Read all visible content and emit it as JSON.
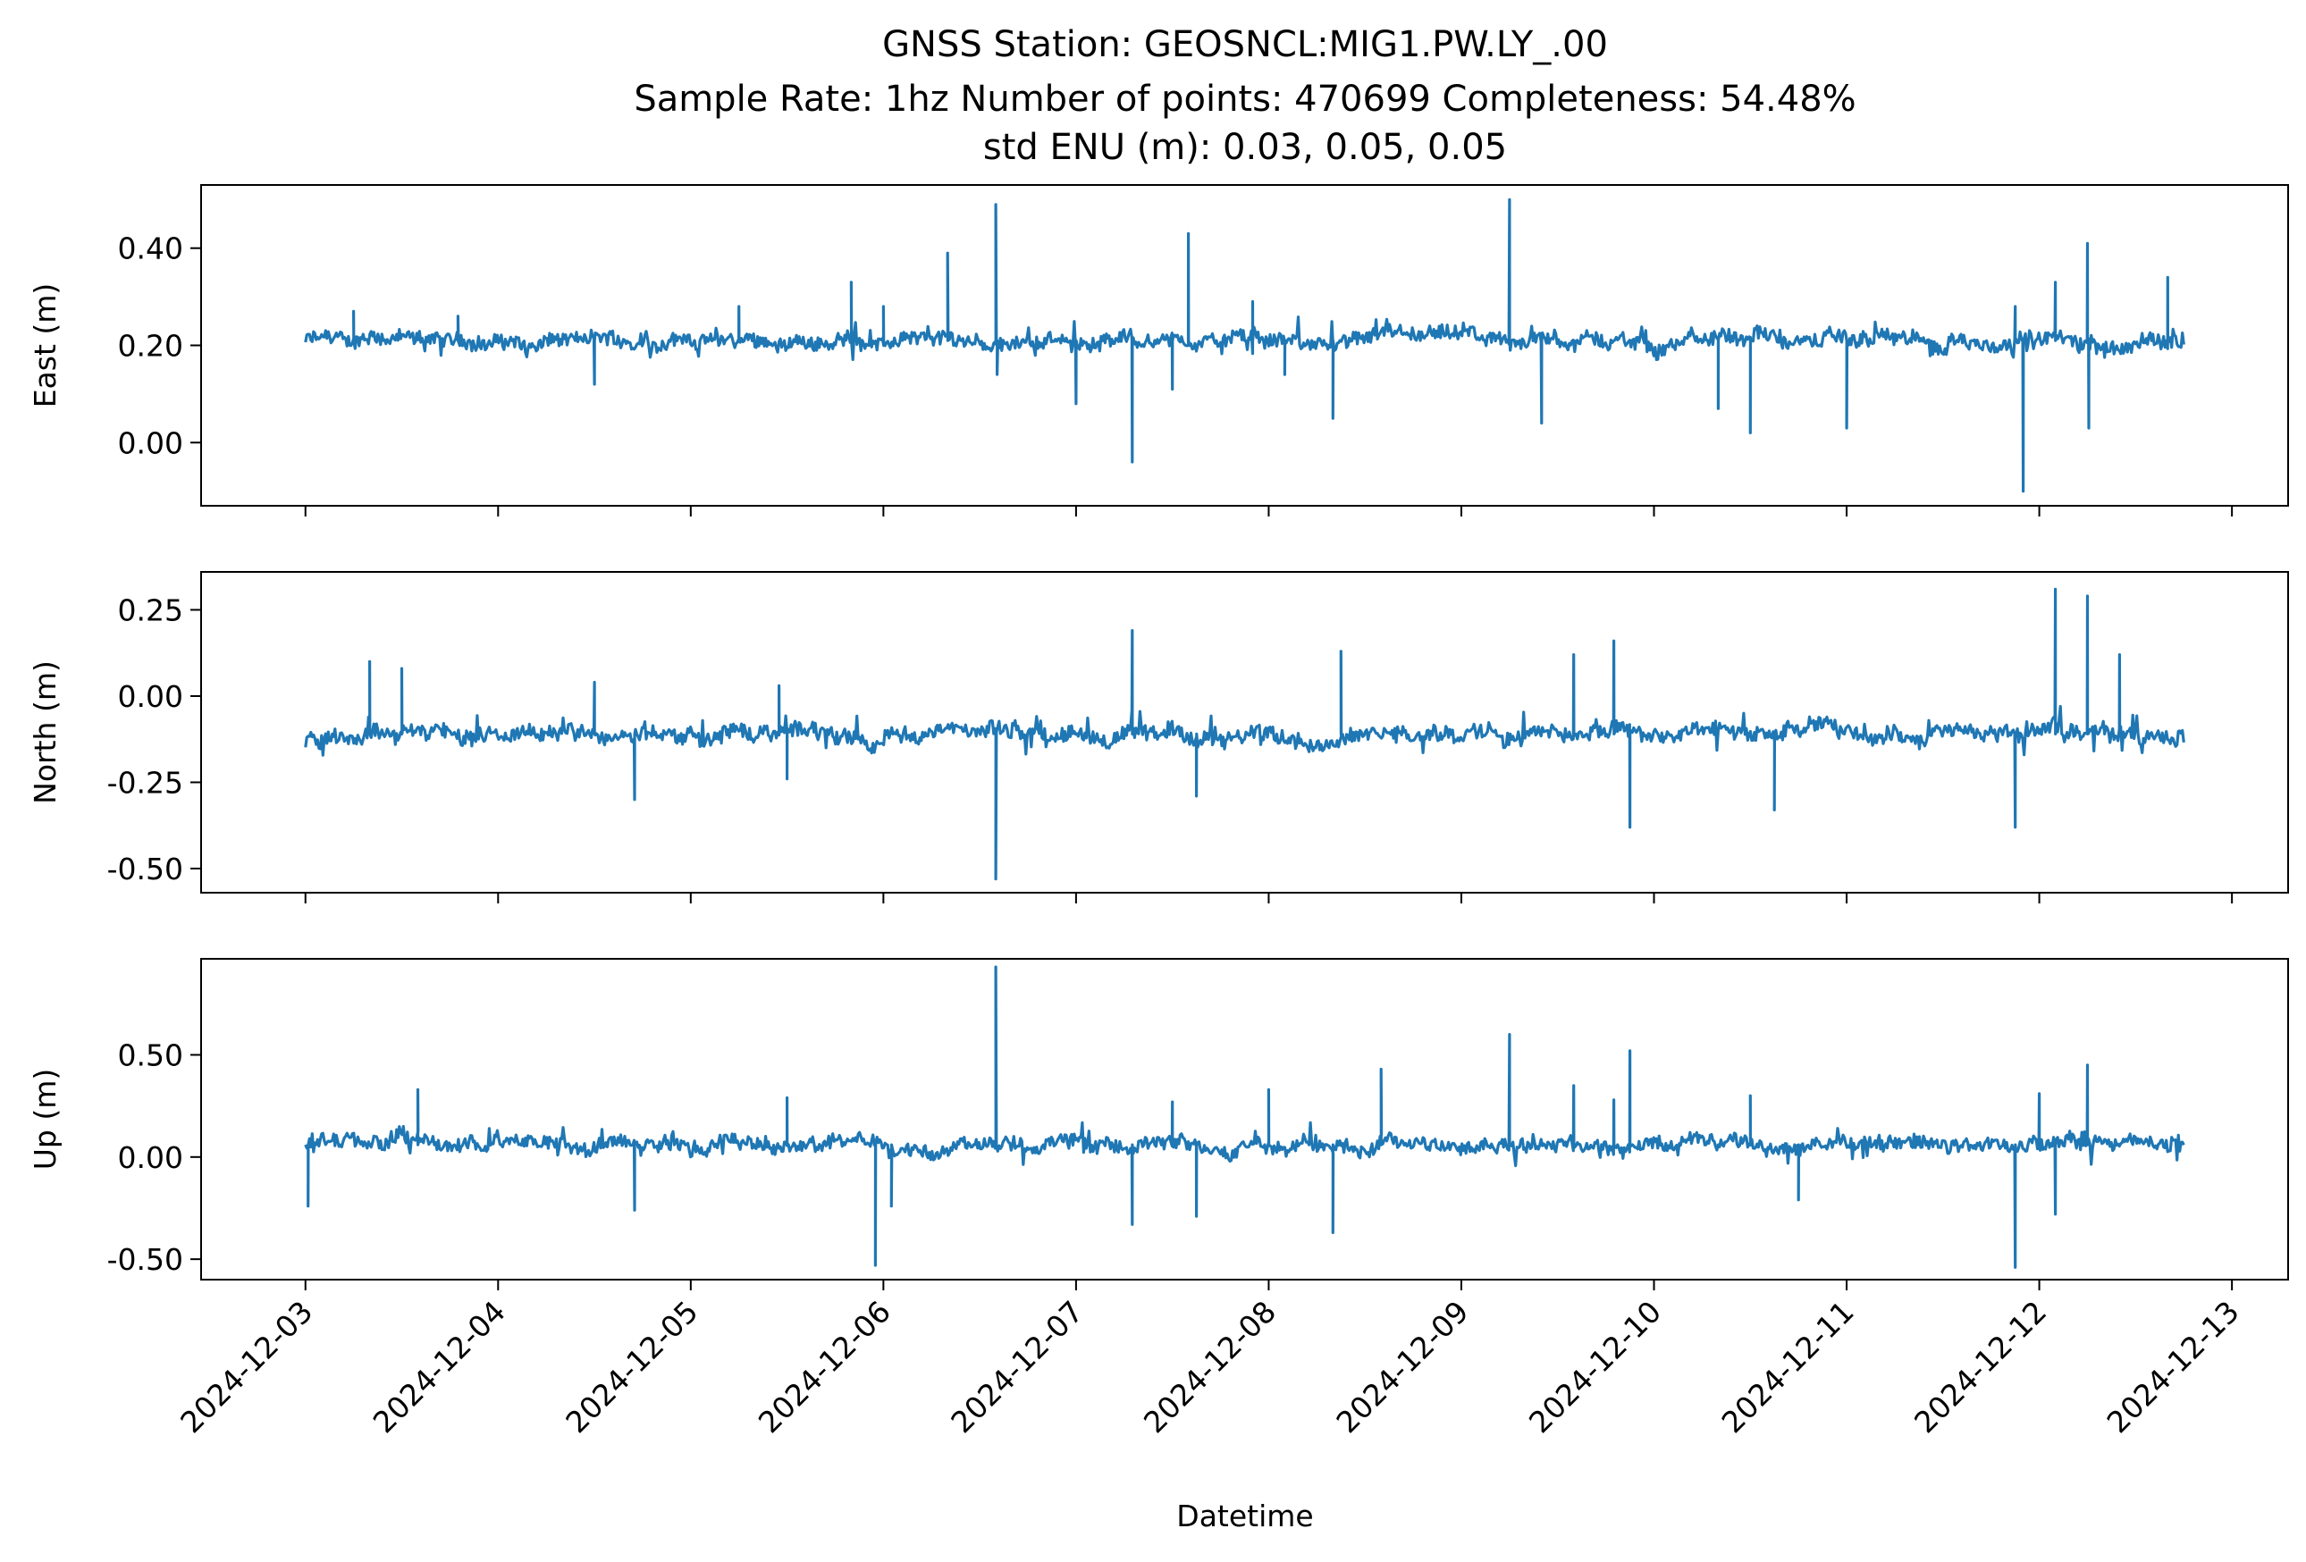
{
  "figure": {
    "title_lines": [
      "GNSS Station: GEOSNCL:MIG1.PW.LY_.00",
      "Sample Rate: 1hz   Number of points: 470699    Completeness:  54.48%",
      "std ENU (m):  0.03, 0.05, 0.05"
    ],
    "xlabel": "Datetime",
    "line_color": "#1f77b4"
  },
  "chart_data": {
    "type": "line",
    "x_ticks": [
      "2024-12-03",
      "2024-12-04",
      "2024-12-05",
      "2024-12-06",
      "2024-12-07",
      "2024-12-08",
      "2024-12-09",
      "2024-12-10",
      "2024-12-11",
      "2024-12-12",
      "2024-12-13"
    ],
    "xlim": [
      "2024-12-02T11:00",
      "2024-12-13T07:00"
    ],
    "data_range": [
      "2024-12-03T00:00",
      "2024-12-12T18:00"
    ],
    "panels": [
      {
        "ylabel": "East (m)",
        "ylim": [
          -0.13,
          0.53
        ],
        "y_ticks": [
          0.4,
          0.2,
          0.0
        ],
        "y_tick_labels": [
          "0.40",
          "0.20",
          "0.00"
        ],
        "baseline": 0.21,
        "noise": 0.012,
        "spikes": [
          [
            "2024-12-03T06:00",
            0.27
          ],
          [
            "2024-12-03T19:00",
            0.26
          ],
          [
            "2024-12-04T12:00",
            0.12
          ],
          [
            "2024-12-05T06:00",
            0.28
          ],
          [
            "2024-12-05T20:00",
            0.33
          ],
          [
            "2024-12-06T00:00",
            0.28
          ],
          [
            "2024-12-06T08:00",
            0.39
          ],
          [
            "2024-12-06T14:00",
            0.49
          ],
          [
            "2024-12-06T14:10",
            0.14
          ],
          [
            "2024-12-07T00:00",
            0.08
          ],
          [
            "2024-12-07T07:00",
            -0.04
          ],
          [
            "2024-12-07T12:00",
            0.11
          ],
          [
            "2024-12-07T14:00",
            0.43
          ],
          [
            "2024-12-07T22:00",
            0.29
          ],
          [
            "2024-12-08T02:00",
            0.14
          ],
          [
            "2024-12-08T08:00",
            0.05
          ],
          [
            "2024-12-09T06:00",
            0.5
          ],
          [
            "2024-12-09T10:00",
            0.04
          ],
          [
            "2024-12-10T08:00",
            0.07
          ],
          [
            "2024-12-10T12:00",
            0.02
          ],
          [
            "2024-12-11T00:00",
            0.03
          ],
          [
            "2024-12-11T21:00",
            0.28
          ],
          [
            "2024-12-11T22:00",
            -0.1
          ],
          [
            "2024-12-12T02:00",
            0.33
          ],
          [
            "2024-12-12T06:00",
            0.41
          ],
          [
            "2024-12-12T06:10",
            0.03
          ],
          [
            "2024-12-12T16:00",
            0.34
          ]
        ]
      },
      {
        "ylabel": "North (m)",
        "ylim": [
          -0.57,
          0.36
        ],
        "y_ticks": [
          0.25,
          0.0,
          -0.25,
          -0.5
        ],
        "y_tick_labels": [
          "0.25",
          "0.00",
          "-0.25",
          "-0.50"
        ],
        "baseline": -0.11,
        "noise": 0.018,
        "spikes": [
          [
            "2024-12-03T08:00",
            0.1
          ],
          [
            "2024-12-03T12:00",
            0.08
          ],
          [
            "2024-12-04T12:00",
            0.04
          ],
          [
            "2024-12-04T17:00",
            -0.3
          ],
          [
            "2024-12-05T11:00",
            0.03
          ],
          [
            "2024-12-05T12:00",
            -0.24
          ],
          [
            "2024-12-06T14:00",
            -0.53
          ],
          [
            "2024-12-07T07:00",
            0.19
          ],
          [
            "2024-12-07T15:00",
            -0.29
          ],
          [
            "2024-12-08T09:00",
            0.13
          ],
          [
            "2024-12-09T14:00",
            0.12
          ],
          [
            "2024-12-09T19:00",
            0.16
          ],
          [
            "2024-12-09T21:00",
            -0.38
          ],
          [
            "2024-12-10T15:00",
            -0.33
          ],
          [
            "2024-12-11T21:00",
            -0.38
          ],
          [
            "2024-12-12T02:00",
            0.31
          ],
          [
            "2024-12-12T06:00",
            0.29
          ],
          [
            "2024-12-12T10:00",
            0.12
          ]
        ]
      },
      {
        "ylabel": "Up (m)",
        "ylim": [
          -0.6,
          0.97
        ],
        "y_ticks": [
          0.5,
          0.0,
          -0.5
        ],
        "y_tick_labels": [
          "0.50",
          "0.00",
          "-0.50"
        ],
        "baseline": 0.06,
        "noise": 0.028,
        "spikes": [
          [
            "2024-12-03T00:20",
            -0.24
          ],
          [
            "2024-12-03T14:00",
            0.33
          ],
          [
            "2024-12-04T17:00",
            -0.26
          ],
          [
            "2024-12-05T12:00",
            0.29
          ],
          [
            "2024-12-05T23:00",
            -0.53
          ],
          [
            "2024-12-06T01:00",
            -0.24
          ],
          [
            "2024-12-06T14:00",
            0.93
          ],
          [
            "2024-12-07T07:00",
            -0.33
          ],
          [
            "2024-12-07T12:00",
            0.27
          ],
          [
            "2024-12-07T15:00",
            -0.29
          ],
          [
            "2024-12-08T00:00",
            0.33
          ],
          [
            "2024-12-08T08:00",
            -0.37
          ],
          [
            "2024-12-08T14:00",
            0.43
          ],
          [
            "2024-12-09T06:00",
            0.6
          ],
          [
            "2024-12-09T14:00",
            0.35
          ],
          [
            "2024-12-09T19:00",
            0.28
          ],
          [
            "2024-12-09T21:00",
            0.52
          ],
          [
            "2024-12-10T12:00",
            0.3
          ],
          [
            "2024-12-10T18:00",
            -0.21
          ],
          [
            "2024-12-11T21:00",
            -0.54
          ],
          [
            "2024-12-12T00:00",
            0.31
          ],
          [
            "2024-12-12T02:00",
            -0.28
          ],
          [
            "2024-12-12T06:00",
            0.45
          ]
        ]
      }
    ]
  }
}
